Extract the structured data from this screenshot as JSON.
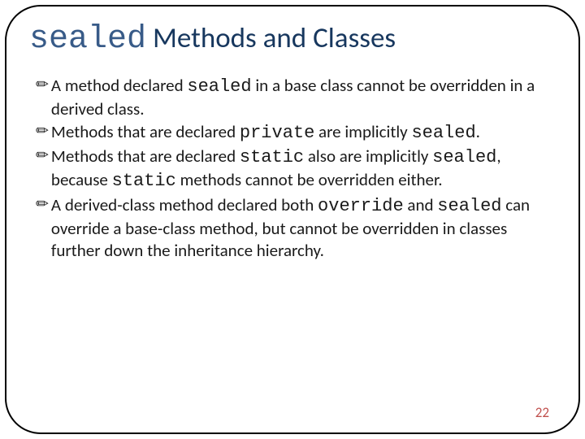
{
  "title": {
    "mono": "sealed",
    "rest": " Methods and Classes"
  },
  "bullets": [
    {
      "marker": "✏",
      "segments": [
        {
          "t": "A method declared "
        },
        {
          "t": "sealed",
          "mono": true
        },
        {
          "t": " in a base class cannot be overridden in a derived class."
        }
      ]
    },
    {
      "marker": "✏",
      "segments": [
        {
          "t": "Methods that are declared "
        },
        {
          "t": "private",
          "mono": true
        },
        {
          "t": " are implicitly "
        },
        {
          "t": "sealed",
          "mono": true
        },
        {
          "t": "."
        }
      ]
    },
    {
      "marker": "✏",
      "segments": [
        {
          "t": "Methods that are declared "
        },
        {
          "t": "static",
          "mono": true
        },
        {
          "t": " also are implicitly "
        },
        {
          "t": "sealed",
          "mono": true
        },
        {
          "t": ", because "
        },
        {
          "t": "static",
          "mono": true
        },
        {
          "t": " methods cannot be overridden either."
        }
      ]
    },
    {
      "marker": "✏",
      "segments": [
        {
          "t": "A derived-class method declared both "
        },
        {
          "t": "override",
          "mono": true
        },
        {
          "t": " and "
        },
        {
          "t": "sealed",
          "mono": true
        },
        {
          "t": " can override a base-class method, but cannot be overridden in classes further down the inheritance hierarchy."
        }
      ]
    }
  ],
  "page_number": "22"
}
